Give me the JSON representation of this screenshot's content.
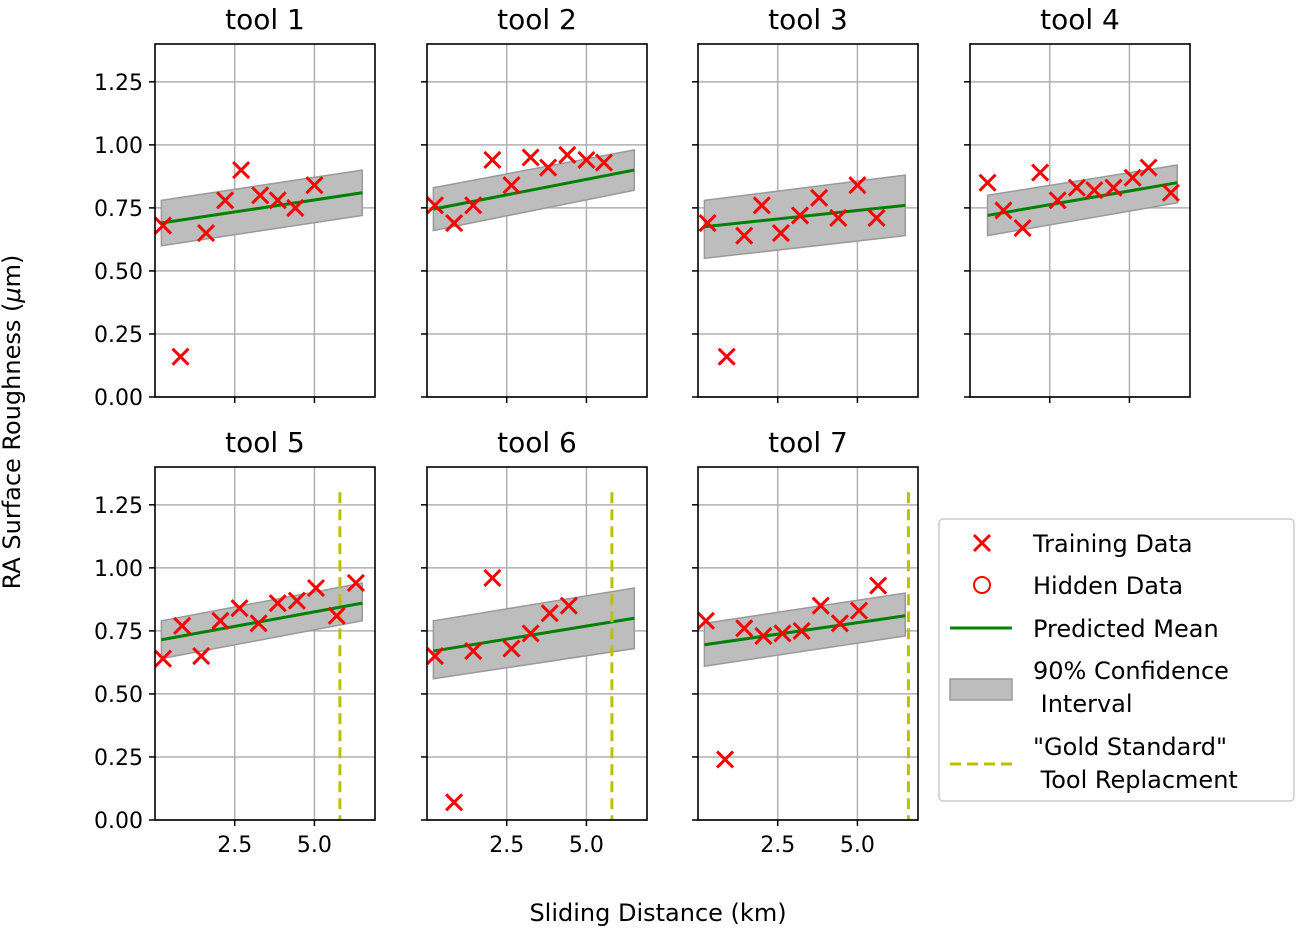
{
  "figure": {
    "ylabel_prefix": "RA Surface Roughness (",
    "ylabel_mu": "μ",
    "ylabel_suffix": "m)",
    "xlabel": "Sliding Distance (km)"
  },
  "legend": {
    "training": "Training Data",
    "hidden": "Hidden Data",
    "mean": "Predicted Mean",
    "ci_line1": "90% Confidence",
    "ci_line2": " Interval",
    "gold_line1": "\"Gold Standard\"",
    "gold_line2": " Tool Replacment"
  },
  "colors": {
    "training": "#ff0000",
    "mean": "#008000",
    "ci_fill": "#bdbdbd",
    "ci_edge": "#9a9a9a",
    "gold": "#bfbf00",
    "grid": "#b0b0b0"
  },
  "chart_data": [
    {
      "type": "scatter",
      "title": "tool 1",
      "xlim": [
        0.0,
        6.9
      ],
      "ylim": [
        0.0,
        1.4
      ],
      "xticks": [
        2.5,
        5.0
      ],
      "yticks": [
        0.0,
        0.25,
        0.5,
        0.75,
        1.0,
        1.25
      ],
      "training": {
        "x": [
          0.25,
          0.8,
          1.6,
          2.2,
          2.7,
          3.3,
          3.85,
          4.4,
          5.0
        ],
        "y": [
          0.68,
          0.16,
          0.65,
          0.78,
          0.9,
          0.8,
          0.78,
          0.75,
          0.84
        ]
      },
      "mean": {
        "x": [
          0.2,
          6.5
        ],
        "y": [
          0.69,
          0.81
        ]
      },
      "ci": {
        "x": [
          0.2,
          6.5
        ],
        "lower": [
          0.6,
          0.72
        ],
        "upper": [
          0.78,
          0.9
        ]
      },
      "gold_standard_x": null
    },
    {
      "type": "scatter",
      "title": "tool 2",
      "xlim": [
        0.0,
        6.9
      ],
      "ylim": [
        0.0,
        1.4
      ],
      "xticks": [
        2.5,
        5.0
      ],
      "yticks": [
        0.0,
        0.25,
        0.5,
        0.75,
        1.0,
        1.25
      ],
      "training": {
        "x": [
          0.25,
          0.85,
          1.45,
          2.05,
          2.65,
          3.25,
          3.8,
          4.4,
          5.0,
          5.55
        ],
        "y": [
          0.76,
          0.69,
          0.76,
          0.94,
          0.84,
          0.95,
          0.91,
          0.96,
          0.94,
          0.93
        ]
      },
      "mean": {
        "x": [
          0.2,
          6.5
        ],
        "y": [
          0.745,
          0.9
        ]
      },
      "ci": {
        "x": [
          0.2,
          6.5
        ],
        "lower": [
          0.66,
          0.82
        ],
        "upper": [
          0.83,
          0.98
        ]
      },
      "gold_standard_x": null
    },
    {
      "type": "scatter",
      "title": "tool 3",
      "xlim": [
        0.0,
        6.9
      ],
      "ylim": [
        0.0,
        1.4
      ],
      "xticks": [
        2.5,
        5.0
      ],
      "yticks": [
        0.0,
        0.25,
        0.5,
        0.75,
        1.0,
        1.25
      ],
      "training": {
        "x": [
          0.3,
          0.9,
          1.45,
          2.0,
          2.6,
          3.2,
          3.8,
          4.4,
          5.0,
          5.6
        ],
        "y": [
          0.69,
          0.16,
          0.64,
          0.76,
          0.65,
          0.72,
          0.79,
          0.71,
          0.84,
          0.71
        ]
      },
      "mean": {
        "x": [
          0.2,
          6.5
        ],
        "y": [
          0.675,
          0.76
        ]
      },
      "ci": {
        "x": [
          0.2,
          6.5
        ],
        "lower": [
          0.55,
          0.64
        ],
        "upper": [
          0.78,
          0.88
        ]
      },
      "gold_standard_x": null
    },
    {
      "type": "scatter",
      "title": "tool 4",
      "xlim": [
        0.0,
        6.9
      ],
      "ylim": [
        0.0,
        1.4
      ],
      "xticks": [
        2.5,
        5.0
      ],
      "yticks": [
        0.0,
        0.25,
        0.5,
        0.75,
        1.0,
        1.25
      ],
      "training": {
        "x": [
          0.55,
          1.05,
          1.65,
          2.2,
          2.75,
          3.35,
          3.9,
          4.5,
          5.1,
          5.6,
          6.3
        ],
        "y": [
          0.85,
          0.74,
          0.67,
          0.89,
          0.78,
          0.83,
          0.82,
          0.83,
          0.87,
          0.91,
          0.81
        ]
      },
      "mean": {
        "x": [
          0.55,
          6.5
        ],
        "y": [
          0.72,
          0.85
        ]
      },
      "ci": {
        "x": [
          0.55,
          6.5
        ],
        "lower": [
          0.64,
          0.77
        ],
        "upper": [
          0.8,
          0.92
        ]
      },
      "gold_standard_x": null
    },
    {
      "type": "scatter",
      "title": "tool 5",
      "xlim": [
        0.0,
        6.9
      ],
      "ylim": [
        0.0,
        1.4
      ],
      "xticks": [
        2.5,
        5.0
      ],
      "yticks": [
        0.0,
        0.25,
        0.5,
        0.75,
        1.0,
        1.25
      ],
      "training": {
        "x": [
          0.25,
          0.85,
          1.45,
          2.05,
          2.65,
          3.25,
          3.85,
          4.45,
          5.05,
          5.7,
          6.3
        ],
        "y": [
          0.64,
          0.77,
          0.65,
          0.79,
          0.84,
          0.78,
          0.86,
          0.87,
          0.92,
          0.81,
          0.94
        ]
      },
      "mean": {
        "x": [
          0.2,
          6.5
        ],
        "y": [
          0.715,
          0.86
        ]
      },
      "ci": {
        "x": [
          0.2,
          6.5
        ],
        "lower": [
          0.64,
          0.79
        ],
        "upper": [
          0.79,
          0.94
        ]
      },
      "gold_standard_x": 5.8
    },
    {
      "type": "scatter",
      "title": "tool 6",
      "xlim": [
        0.0,
        6.9
      ],
      "ylim": [
        0.0,
        1.4
      ],
      "xticks": [
        2.5,
        5.0
      ],
      "yticks": [
        0.0,
        0.25,
        0.5,
        0.75,
        1.0,
        1.25
      ],
      "training": {
        "x": [
          0.25,
          0.85,
          1.45,
          2.05,
          2.65,
          3.25,
          3.85,
          4.45
        ],
        "y": [
          0.65,
          0.07,
          0.67,
          0.96,
          0.68,
          0.74,
          0.82,
          0.85
        ]
      },
      "mean": {
        "x": [
          0.2,
          6.5
        ],
        "y": [
          0.67,
          0.8
        ]
      },
      "ci": {
        "x": [
          0.2,
          6.5
        ],
        "lower": [
          0.56,
          0.68
        ],
        "upper": [
          0.79,
          0.92
        ]
      },
      "gold_standard_x": 5.8
    },
    {
      "type": "scatter",
      "title": "tool 7",
      "xlim": [
        0.0,
        6.9
      ],
      "ylim": [
        0.0,
        1.4
      ],
      "xticks": [
        2.5,
        5.0
      ],
      "yticks": [
        0.0,
        0.25,
        0.5,
        0.75,
        1.0,
        1.25
      ],
      "training": {
        "x": [
          0.25,
          0.85,
          1.45,
          2.05,
          2.65,
          3.25,
          3.85,
          4.45,
          5.05,
          5.65
        ],
        "y": [
          0.79,
          0.24,
          0.76,
          0.73,
          0.74,
          0.75,
          0.85,
          0.78,
          0.83,
          0.93
        ]
      },
      "mean": {
        "x": [
          0.2,
          6.5
        ],
        "y": [
          0.695,
          0.81
        ]
      },
      "ci": {
        "x": [
          0.2,
          6.5
        ],
        "lower": [
          0.61,
          0.73
        ],
        "upper": [
          0.78,
          0.9
        ]
      },
      "gold_standard_x": 6.6
    }
  ]
}
